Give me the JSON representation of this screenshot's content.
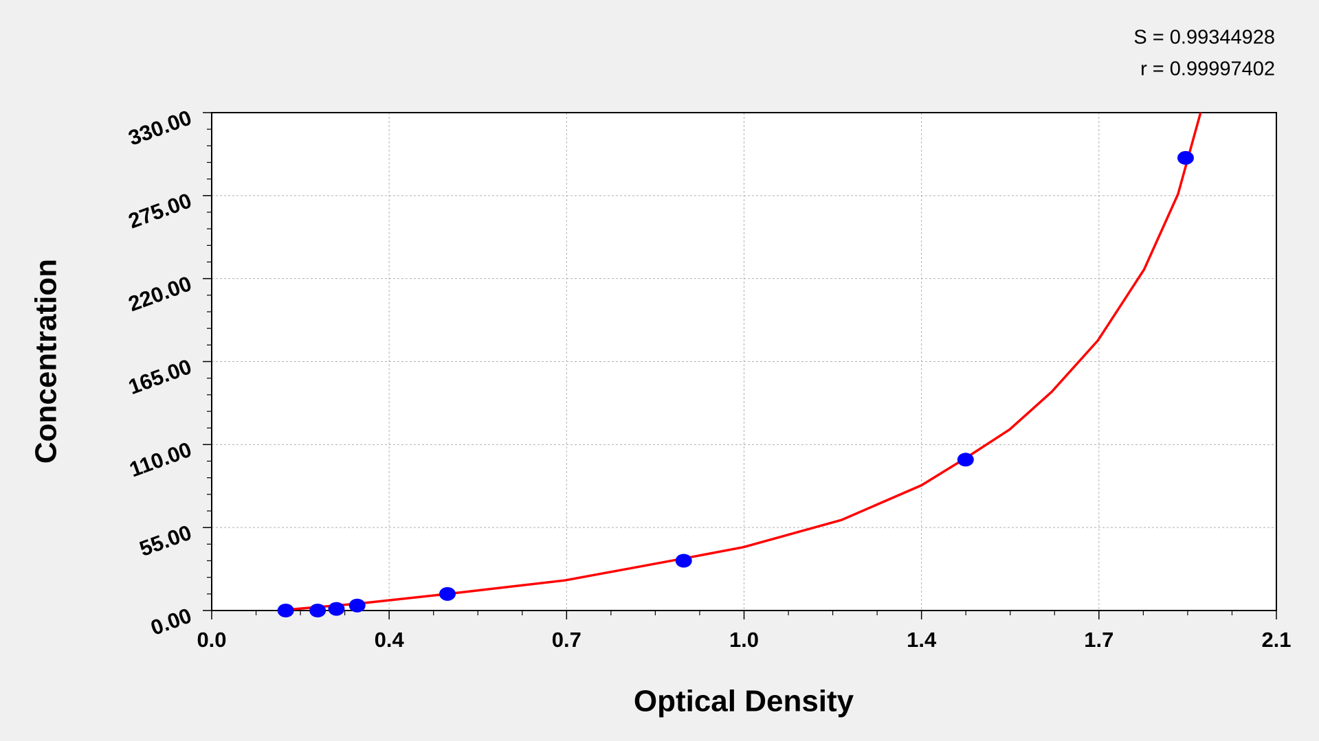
{
  "chart_data": {
    "type": "scatter",
    "annotations": [
      "S = 0.99344928",
      "r = 0.99997402"
    ],
    "x_label": "Optical Density",
    "y_label": "Concentration",
    "xlim": [
      0,
      2.1
    ],
    "ylim": [
      0,
      330
    ],
    "xticks": [
      {
        "value": 0,
        "label": "0.0"
      },
      {
        "value": 0.35,
        "label": "0.4"
      },
      {
        "value": 0.7,
        "label": "0.7"
      },
      {
        "value": 1.05,
        "label": "1.0"
      },
      {
        "value": 1.4,
        "label": "1.4"
      },
      {
        "value": 1.75,
        "label": "1.7"
      },
      {
        "value": 2.1,
        "label": "2.1"
      }
    ],
    "yticks": [
      {
        "value": 0,
        "label": "0.00"
      },
      {
        "value": 55,
        "label": "55.00"
      },
      {
        "value": 110,
        "label": "110.00"
      },
      {
        "value": 165,
        "label": "165.00"
      },
      {
        "value": 220,
        "label": "220.00"
      },
      {
        "value": 275,
        "label": "275.00"
      },
      {
        "value": 330,
        "label": "330.00"
      }
    ],
    "grid": true,
    "series": [
      {
        "color": "#0000ff",
        "x": [
          0.146,
          0.209,
          0.246,
          0.287,
          0.465,
          0.931,
          1.487,
          1.921
        ],
        "values": [
          0,
          0,
          1.1,
          3.3,
          11,
          33,
          100,
          300
        ]
      },
      {
        "color": "#ff0000",
        "x": [
          0.13,
          0.287,
          0.465,
          0.697,
          0.931,
          1.049,
          1.242,
          1.4,
          1.487,
          1.574,
          1.657,
          1.748,
          1.839,
          1.906,
          1.953
        ],
        "values": [
          0,
          4.5,
          11,
          20,
          34.5,
          42,
          60,
          83,
          101,
          120,
          145,
          179,
          226,
          276,
          333
        ]
      }
    ]
  }
}
